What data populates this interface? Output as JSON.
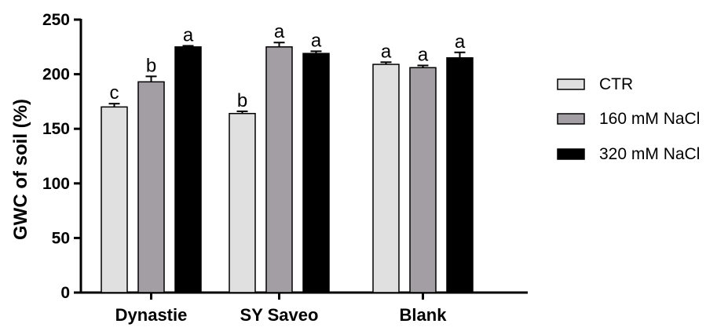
{
  "chart_data": {
    "type": "bar",
    "ylabel": "GWC of soil (%)",
    "ylim": [
      0,
      250
    ],
    "yticks": [
      0,
      50,
      100,
      150,
      200,
      250
    ],
    "categories": [
      "Dynastie",
      "SY Saveo",
      "Blank"
    ],
    "legend_position": "right",
    "grid": false,
    "series": [
      {
        "name": "CTR",
        "color": "#e0e0e0",
        "values": [
          170,
          164,
          209
        ],
        "errors": [
          3,
          2,
          2
        ],
        "letters": [
          "c",
          "b",
          "a"
        ]
      },
      {
        "name": "160 mM NaCl",
        "color": "#a39ea3",
        "values": [
          193,
          225,
          206
        ],
        "errors": [
          5,
          4,
          2
        ],
        "letters": [
          "b",
          "a",
          "a"
        ]
      },
      {
        "name": "320 mM NaCl",
        "color": "#000000",
        "values": [
          225,
          219,
          215
        ],
        "errors": [
          1,
          2,
          5
        ],
        "letters": [
          "a",
          "a",
          "a"
        ]
      }
    ]
  }
}
